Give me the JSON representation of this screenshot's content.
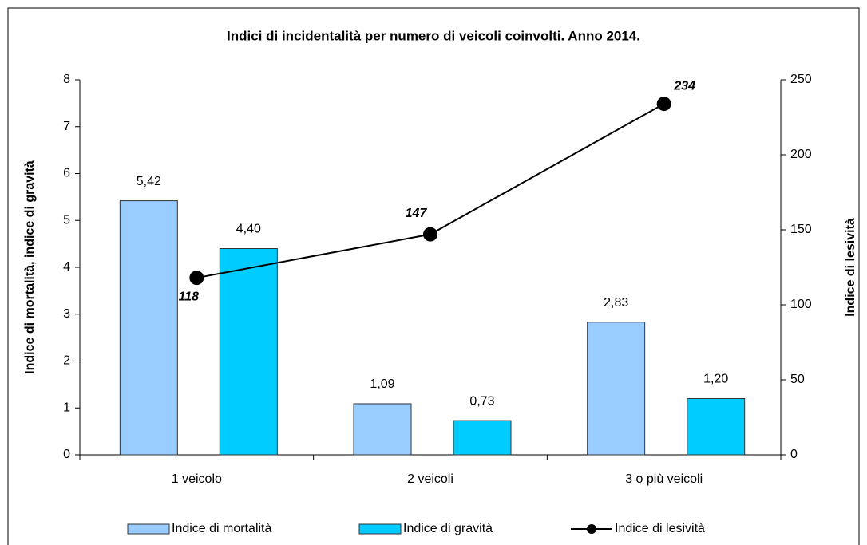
{
  "chart_data": {
    "type": "bar_line",
    "title": "Indici di incidentalità per numero di veicoli coinvolti. Anno 2014.",
    "ylabel": "Indice di mortalità, indice di gravità",
    "y2label": "Indice di lesività",
    "categories": [
      "1 veicolo",
      "2 veicoli",
      "3 o più veicoli"
    ],
    "ylim": [
      0,
      8
    ],
    "yticks": [
      0,
      1,
      2,
      3,
      4,
      5,
      6,
      7,
      8
    ],
    "y2lim": [
      0,
      250
    ],
    "y2ticks": [
      0,
      50,
      100,
      150,
      200,
      250
    ],
    "legend": "bottom",
    "series": [
      {
        "name": "Indice di mortalità",
        "type": "bar",
        "color": "#99ccff",
        "values": [
          5.42,
          1.09,
          2.83
        ],
        "value_labels": [
          "5,42",
          "1,09",
          "2,83"
        ]
      },
      {
        "name": "Indice di gravità",
        "type": "bar",
        "color": "#00ccff",
        "values": [
          4.4,
          0.73,
          1.2
        ],
        "value_labels": [
          "4,40",
          "0,73",
          "1,20"
        ]
      },
      {
        "name": "Indice di lesività",
        "type": "line",
        "axis": "y2",
        "color": "#000000",
        "values": [
          118,
          147,
          234
        ]
      }
    ]
  }
}
